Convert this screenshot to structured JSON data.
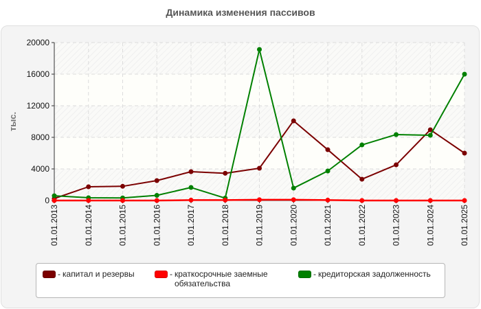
{
  "title": "Динамика изменения пассивов",
  "colors": {
    "panel_bg": "#f4f4f4",
    "plot_bg": "#fefefa",
    "grid": "#dcdcdc",
    "axis": "#333333"
  },
  "legend": {
    "items": [
      {
        "label": "капитал и резервы",
        "color": "#7b0000"
      },
      {
        "label": "краткосрочные заемные обязательства",
        "line1": "краткосрочные заемные",
        "line2": "обязательства",
        "color": "#ff0000"
      },
      {
        "label": "кредиторская задолженность",
        "color": "#008000"
      }
    ]
  },
  "chart_data": {
    "type": "line",
    "title": "Динамика изменения пассивов",
    "xlabel": "",
    "ylabel": "тыс.",
    "ylim": [
      0,
      20000
    ],
    "yticks": [
      0,
      4000,
      8000,
      12000,
      16000,
      20000
    ],
    "grid": true,
    "legend_position": "bottom",
    "categories": [
      "01.01.2013",
      "01.01.2014",
      "01.01.2015",
      "01.01.2016",
      "01.01.2017",
      "01.01.2018",
      "01.01.2019",
      "01.01.2020",
      "01.01.2021",
      "01.01.2022",
      "01.01.2023",
      "01.01.2024",
      "01.01.2025"
    ],
    "series": [
      {
        "name": "капитал и резервы",
        "color": "#7b0000",
        "values": [
          250,
          1740,
          1800,
          2520,
          3650,
          3450,
          4090,
          10090,
          6430,
          2700,
          4520,
          8960,
          6000
        ]
      },
      {
        "name": "краткосрочные заемные обязательства",
        "color": "#ff0000",
        "values": [
          0,
          0,
          0,
          0,
          50,
          50,
          100,
          100,
          50,
          0,
          0,
          0,
          0
        ]
      },
      {
        "name": "кредиторская задолженность",
        "color": "#008000",
        "values": [
          600,
          350,
          330,
          650,
          1650,
          300,
          19130,
          1570,
          3740,
          7040,
          8350,
          8260,
          16000
        ]
      }
    ]
  }
}
